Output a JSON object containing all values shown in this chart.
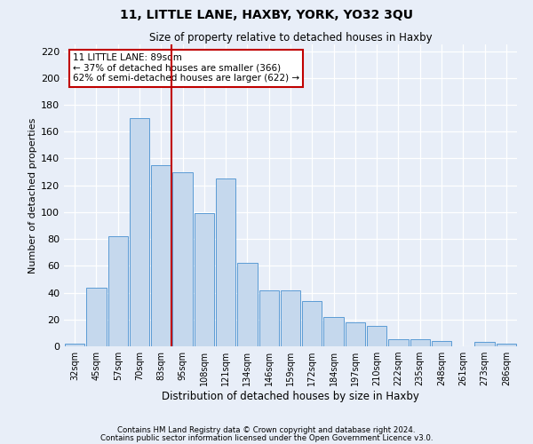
{
  "title": "11, LITTLE LANE, HAXBY, YORK, YO32 3QU",
  "subtitle": "Size of property relative to detached houses in Haxby",
  "xlabel": "Distribution of detached houses by size in Haxby",
  "ylabel": "Number of detached properties",
  "footnote1": "Contains HM Land Registry data © Crown copyright and database right 2024.",
  "footnote2": "Contains public sector information licensed under the Open Government Licence v3.0.",
  "bar_labels": [
    "32sqm",
    "45sqm",
    "57sqm",
    "70sqm",
    "83sqm",
    "95sqm",
    "108sqm",
    "121sqm",
    "134sqm",
    "146sqm",
    "159sqm",
    "172sqm",
    "184sqm",
    "197sqm",
    "210sqm",
    "222sqm",
    "235sqm",
    "248sqm",
    "261sqm",
    "273sqm",
    "286sqm"
  ],
  "bar_values": [
    2,
    44,
    82,
    170,
    135,
    130,
    99,
    125,
    62,
    42,
    42,
    34,
    22,
    18,
    15,
    5,
    5,
    4,
    0,
    3,
    2
  ],
  "bar_color": "#c5d8ed",
  "bar_edge_color": "#5b9bd5",
  "vline_x": 4.5,
  "vline_color": "#c00000",
  "annotation_title": "11 LITTLE LANE: 89sqm",
  "annotation_line1": "← 37% of detached houses are smaller (366)",
  "annotation_line2": "62% of semi-detached houses are larger (622) →",
  "annotation_box_color": "#c00000",
  "ylim": [
    0,
    225
  ],
  "yticks": [
    0,
    20,
    40,
    60,
    80,
    100,
    120,
    140,
    160,
    180,
    200,
    220
  ],
  "background_color": "#e8eef8",
  "plot_bg_color": "#e8eef8",
  "grid_color": "#ffffff"
}
